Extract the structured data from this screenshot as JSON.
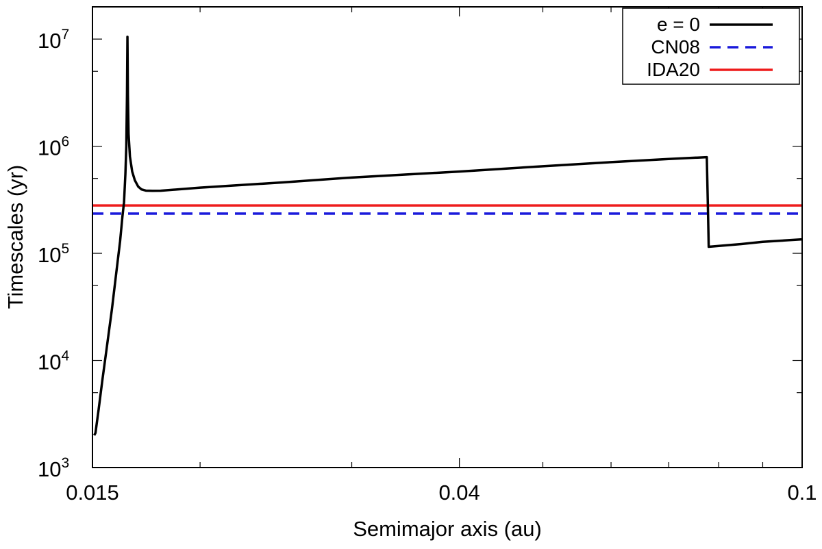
{
  "chart_data": {
    "type": "line",
    "xlabel": "Semimajor axis (au)",
    "ylabel": "Timescales (yr)",
    "xscale": "log",
    "yscale": "log",
    "xlim": [
      0.015,
      0.1
    ],
    "ylim": [
      1000,
      20000000
    ],
    "xticks": [
      {
        "value": 0.015,
        "label": "0.015"
      },
      {
        "value": 0.04,
        "label": "0.04"
      },
      {
        "value": 0.1,
        "label": "0.1"
      }
    ],
    "xminor": [
      0.02,
      0.03,
      0.05,
      0.06,
      0.07,
      0.08,
      0.09
    ],
    "yticks": [
      {
        "value": 1000,
        "base": "10",
        "exp": "3"
      },
      {
        "value": 10000,
        "base": "10",
        "exp": "4"
      },
      {
        "value": 100000,
        "base": "10",
        "exp": "5"
      },
      {
        "value": 1000000,
        "base": "10",
        "exp": "6"
      },
      {
        "value": 10000000,
        "base": "10",
        "exp": "7"
      }
    ],
    "legend_position": "top-right",
    "series": [
      {
        "name": "e = 0",
        "color": "#000000",
        "dash": "solid",
        "points": [
          [
            0.01507,
            2000
          ],
          [
            0.01512,
            2100
          ],
          [
            0.01525,
            3500
          ],
          [
            0.0154,
            6500
          ],
          [
            0.0156,
            14000
          ],
          [
            0.0158,
            30000
          ],
          [
            0.016,
            70000
          ],
          [
            0.01615,
            130000
          ],
          [
            0.01625,
            220000
          ],
          [
            0.01632,
            300000
          ],
          [
            0.01638,
            550000
          ],
          [
            0.01642,
            1000000
          ],
          [
            0.01645,
            3000000
          ],
          [
            0.01647,
            10500000
          ],
          [
            0.01649,
            3000000
          ],
          [
            0.01652,
            1300000
          ],
          [
            0.01658,
            800000
          ],
          [
            0.01668,
            580000
          ],
          [
            0.0168,
            480000
          ],
          [
            0.01695,
            420000
          ],
          [
            0.0171,
            395000
          ],
          [
            0.0173,
            385000
          ],
          [
            0.0176,
            383000
          ],
          [
            0.018,
            384000
          ],
          [
            0.02,
            410000
          ],
          [
            0.025,
            460000
          ],
          [
            0.03,
            510000
          ],
          [
            0.04,
            580000
          ],
          [
            0.05,
            650000
          ],
          [
            0.06,
            710000
          ],
          [
            0.07,
            760000
          ],
          [
            0.0775,
            790000
          ],
          [
            0.0776,
            500000
          ],
          [
            0.07775,
            250000
          ],
          [
            0.0779,
            115000
          ],
          [
            0.085,
            122000
          ],
          [
            0.09,
            128000
          ],
          [
            0.1,
            135000
          ]
        ]
      },
      {
        "name": "CN08",
        "color": "#1a1adb",
        "dash": "dashed",
        "points": [
          [
            0.015,
            235000
          ],
          [
            0.1,
            235000
          ]
        ]
      },
      {
        "name": "IDA20",
        "color": "#ee1c1c",
        "dash": "solid",
        "points": [
          [
            0.015,
            280000
          ],
          [
            0.1,
            280000
          ]
        ]
      }
    ]
  }
}
